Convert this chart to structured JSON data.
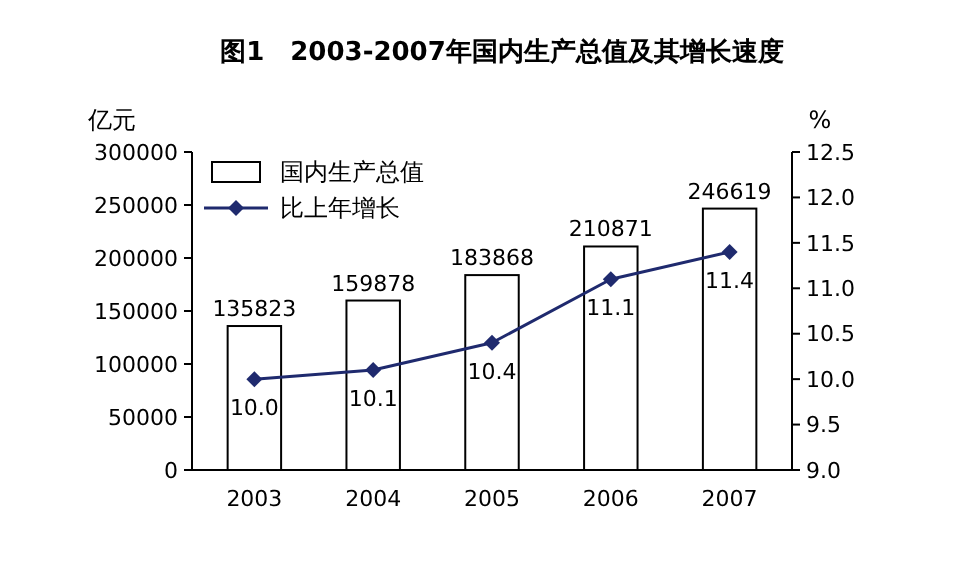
{
  "chart_data": {
    "type": "bar",
    "title": "图1　2003-2007年国内生产总值及其增长速度",
    "ylabel": "亿元",
    "y2label": "%",
    "categories": [
      "2003",
      "2004",
      "2005",
      "2006",
      "2007"
    ],
    "series": [
      {
        "name": "国内生产总值",
        "color": "#ffffff",
        "values": [
          135823,
          159878,
          183868,
          210871,
          246619
        ]
      },
      {
        "name": "比上年增长",
        "type": "line",
        "axis": "y2",
        "color": "#1f2a6e",
        "marker": "diamond",
        "values": [
          10.0,
          10.1,
          10.4,
          11.1,
          11.4
        ],
        "value_labels": [
          "10.0",
          "10.1",
          "10.4",
          "11.1",
          "11.4"
        ]
      }
    ],
    "data_labels": true,
    "ylim": [
      0,
      300000
    ],
    "yticks": [
      0,
      50000,
      100000,
      150000,
      200000,
      250000,
      300000
    ],
    "y2lim": [
      9.0,
      12.5
    ],
    "y2ticks": [
      {
        "value": 9.0,
        "label": "9.0"
      },
      {
        "value": 9.5,
        "label": "9.5"
      },
      {
        "value": 10.0,
        "label": "10.0"
      },
      {
        "value": 10.5,
        "label": "10.5"
      },
      {
        "value": 11.0,
        "label": "11.0"
      },
      {
        "value": 11.5,
        "label": "11.5"
      },
      {
        "value": 12.0,
        "label": "12.0"
      },
      {
        "value": 12.5,
        "label": "12.5"
      }
    ],
    "legend": "top left",
    "grid": false
  }
}
